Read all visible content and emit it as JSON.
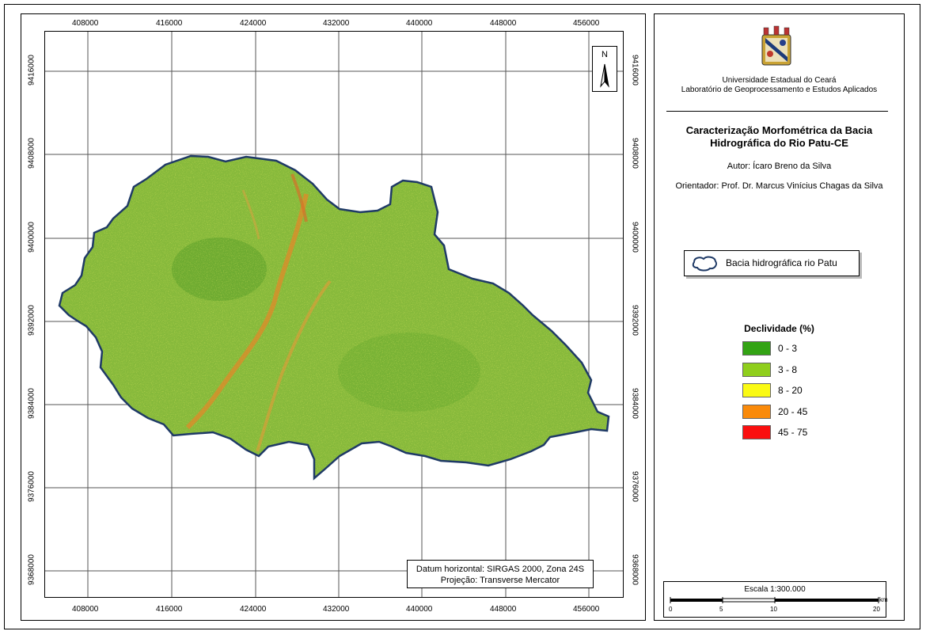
{
  "map": {
    "x_ticks": [
      "408000",
      "416000",
      "424000",
      "432000",
      "440000",
      "448000",
      "456000"
    ],
    "y_ticks": [
      "9416000",
      "9408000",
      "9400000",
      "9392000",
      "9384000",
      "9376000",
      "9368000"
    ],
    "north_label": "N",
    "datum_line1": "Datum horizontal: SIRGAS 2000, Zona 24S",
    "datum_line2": "Projeção: Transverse Mercator"
  },
  "sidebar": {
    "institution": "Universidade Estadual do Ceará",
    "lab": "Laboratório de Geoprocessamento e Estudos Aplicados",
    "title_line1": "Caracterização Morfométrica da Bacia",
    "title_line2": "Hidrográfica do Rio Patu-CE",
    "author": "Autor: Ícaro Breno da Silva",
    "advisor": "Orientador: Prof. Dr. Marcus Vinícius Chagas da Silva",
    "boundary_label": "Bacia hidrográfica rio Patu"
  },
  "legend": {
    "title": "Declividade (%)",
    "items": [
      {
        "label": "0 - 3",
        "color": "#33a314"
      },
      {
        "label": "3 - 8",
        "color": "#8fce1c"
      },
      {
        "label": "8 - 20",
        "color": "#fafa14"
      },
      {
        "label": "20 - 45",
        "color": "#fa8a0a"
      },
      {
        "label": "45 - 75",
        "color": "#fa0f0f"
      }
    ]
  },
  "scale": {
    "title": "Escala 1:300.000",
    "unit": "km",
    "labels": [
      "0",
      "5",
      "10",
      "20"
    ]
  },
  "colors": {
    "basin_green": "#86b93b",
    "basin_outline": "#1f3a66"
  }
}
